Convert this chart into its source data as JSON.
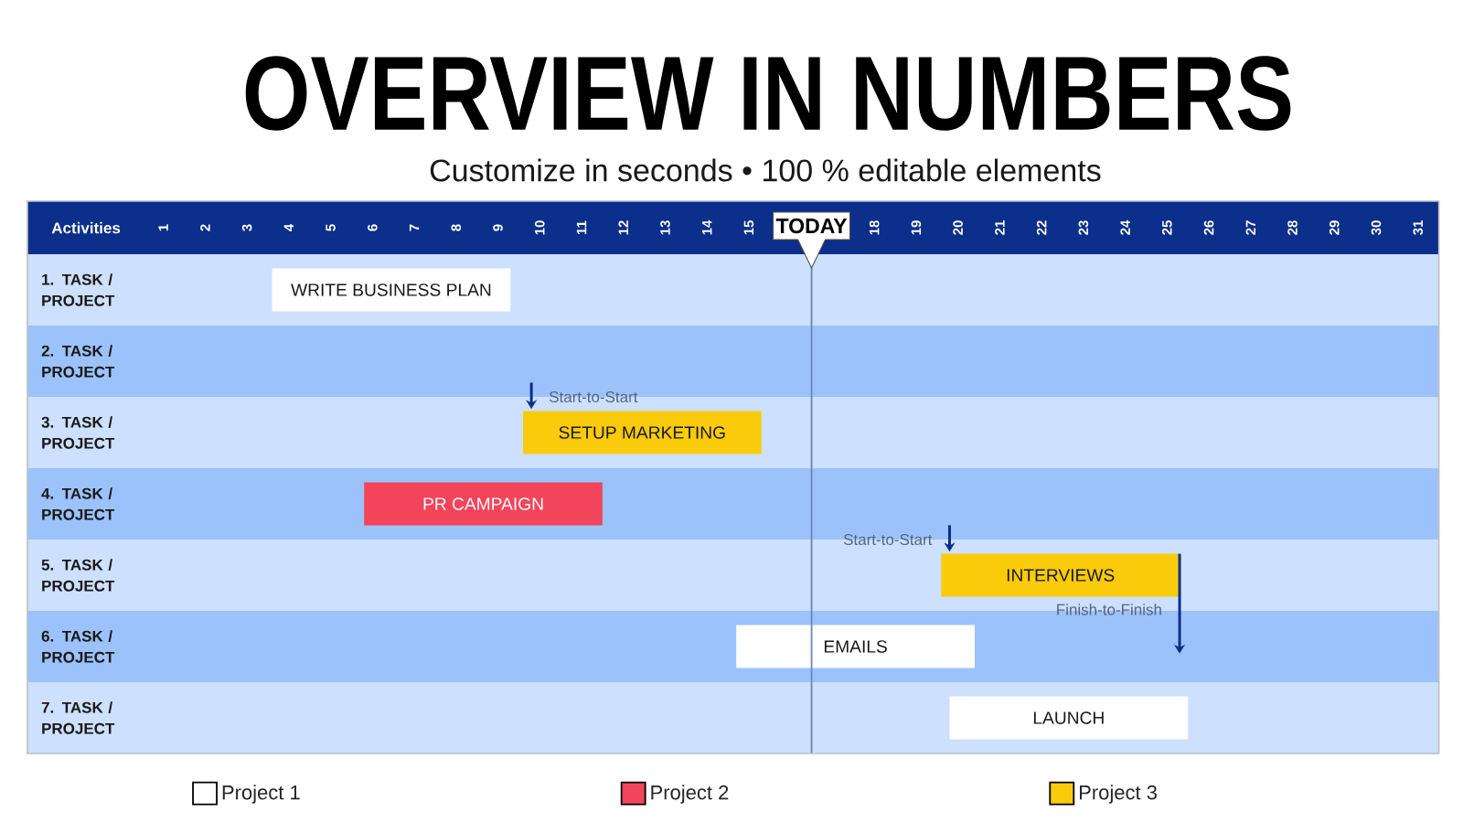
{
  "chart_data": {
    "type": "bar",
    "orientation": "horizontal",
    "title": "OVERVIEW IN NUMBERS",
    "subtitle": "Customize in seconds • 100 % editable elements",
    "ylabel": "Activities",
    "categories": [
      "1. TASK / PROJECT",
      "2. TASK / PROJECT",
      "3. TASK / PROJECT",
      "4. TASK / PROJECT",
      "5. TASK / PROJECT",
      "6. TASK / PROJECT",
      "7. TASK / PROJECT"
    ],
    "series": [
      {
        "name": "Project 1",
        "color": "#ffffff",
        "base": [
          3.6,
          null,
          null,
          null,
          null,
          14.7,
          19.8
        ],
        "values": [
          5.7,
          null,
          null,
          null,
          null,
          5.7,
          5.7
        ],
        "value_labels": [
          "WRITE BUSINESS PLAN",
          null,
          null,
          null,
          null,
          "EMAILS",
          "LAUNCH"
        ]
      },
      {
        "name": "Project 2",
        "color": "#f2455b",
        "base": [
          null,
          null,
          null,
          5.8,
          null,
          null,
          null
        ],
        "values": [
          null,
          null,
          null,
          5.7,
          null,
          null,
          null
        ],
        "value_labels": [
          null,
          null,
          null,
          "PR CAMPAIGN",
          null,
          null,
          null
        ]
      },
      {
        "name": "Project 3",
        "color": "#f9cb0a",
        "base": [
          null,
          null,
          9.6,
          null,
          19.6,
          null,
          null
        ],
        "values": [
          null,
          null,
          5.7,
          null,
          5.7,
          null,
          null
        ],
        "value_labels": [
          null,
          null,
          "SETUP MARKETING",
          null,
          "INTERVIEWS",
          null,
          null
        ]
      }
    ],
    "xlim": [
      -2.25,
      31.5
    ],
    "xticks": [
      1,
      2,
      3,
      4,
      5,
      6,
      7,
      8,
      9,
      10,
      11,
      12,
      13,
      14,
      15,
      18,
      19,
      20,
      21,
      22,
      23,
      24,
      25,
      26,
      27,
      28,
      29,
      30,
      31
    ],
    "ref_lines": [
      {
        "axis": "x",
        "value": 16.5,
        "label": "TODAY"
      }
    ],
    "bands": [
      {
        "axis": "y",
        "from": "1. TASK / PROJECT",
        "to": "1. TASK / PROJECT",
        "color": "#cde0fd"
      },
      {
        "axis": "y",
        "from": "2. TASK / PROJECT",
        "to": "2. TASK / PROJECT",
        "color": "#9cc2fb"
      },
      {
        "axis": "y",
        "from": "3. TASK / PROJECT",
        "to": "3. TASK / PROJECT",
        "color": "#cde0fd"
      },
      {
        "axis": "y",
        "from": "4. TASK / PROJECT",
        "to": "4. TASK / PROJECT",
        "color": "#9cc2fb"
      },
      {
        "axis": "y",
        "from": "5. TASK / PROJECT",
        "to": "5. TASK / PROJECT",
        "color": "#cde0fd"
      },
      {
        "axis": "y",
        "from": "6. TASK / PROJECT",
        "to": "6. TASK / PROJECT",
        "color": "#9cc2fb"
      },
      {
        "axis": "y",
        "from": "7. TASK / PROJECT",
        "to": "7. TASK / PROJECT",
        "color": "#cde0fd"
      }
    ],
    "annotations": [
      {
        "text": "Start-to-Start",
        "x": 9.8,
        "y": "3. TASK / PROJECT"
      },
      {
        "text": "Start-to-Start",
        "x": 19.8,
        "y": "5. TASK / PROJECT"
      },
      {
        "text": "Finish-to-Finish",
        "x": 25.3,
        "y": "5. TASK / PROJECT"
      }
    ],
    "legend": "bottom"
  }
}
